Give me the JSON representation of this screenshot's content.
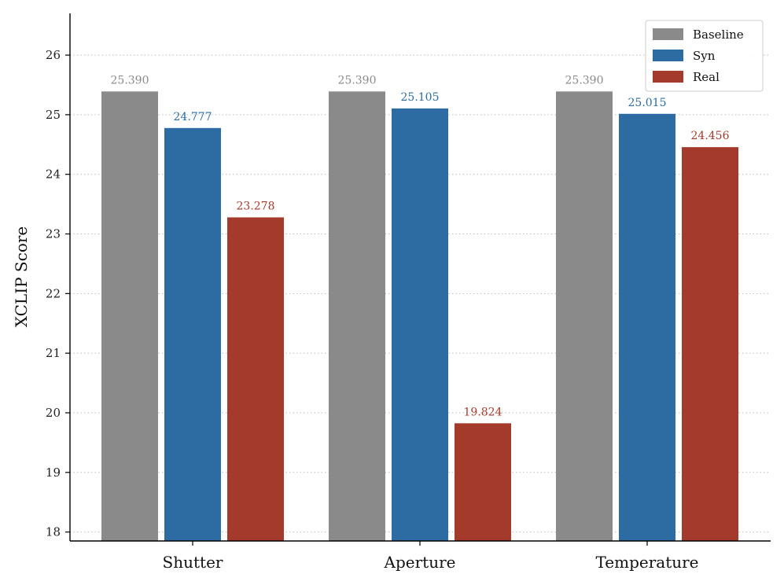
{
  "chart_data": {
    "type": "bar",
    "title": "",
    "xlabel": "",
    "ylabel": "XCLIP Score",
    "ylim": [
      17.85,
      26.7
    ],
    "yticks": [
      18,
      19,
      20,
      21,
      22,
      23,
      24,
      25,
      26
    ],
    "grid": "horizontal-dotted",
    "legend_position": "top-right",
    "categories": [
      "Shutter",
      "Aperture",
      "Temperature"
    ],
    "series": [
      {
        "name": "Baseline",
        "color": "#8a8a8a",
        "values": [
          25.39,
          25.39,
          25.39
        ],
        "labels": [
          "25.390",
          "25.390",
          "25.390"
        ]
      },
      {
        "name": "Syn",
        "color": "#2c6ca3",
        "values": [
          24.777,
          25.105,
          25.015
        ],
        "labels": [
          "24.777",
          "25.105",
          "25.015"
        ]
      },
      {
        "name": "Real",
        "color": "#a33a2c",
        "values": [
          23.278,
          19.824,
          24.456
        ],
        "labels": [
          "23.278",
          "19.824",
          "24.456"
        ]
      }
    ]
  }
}
